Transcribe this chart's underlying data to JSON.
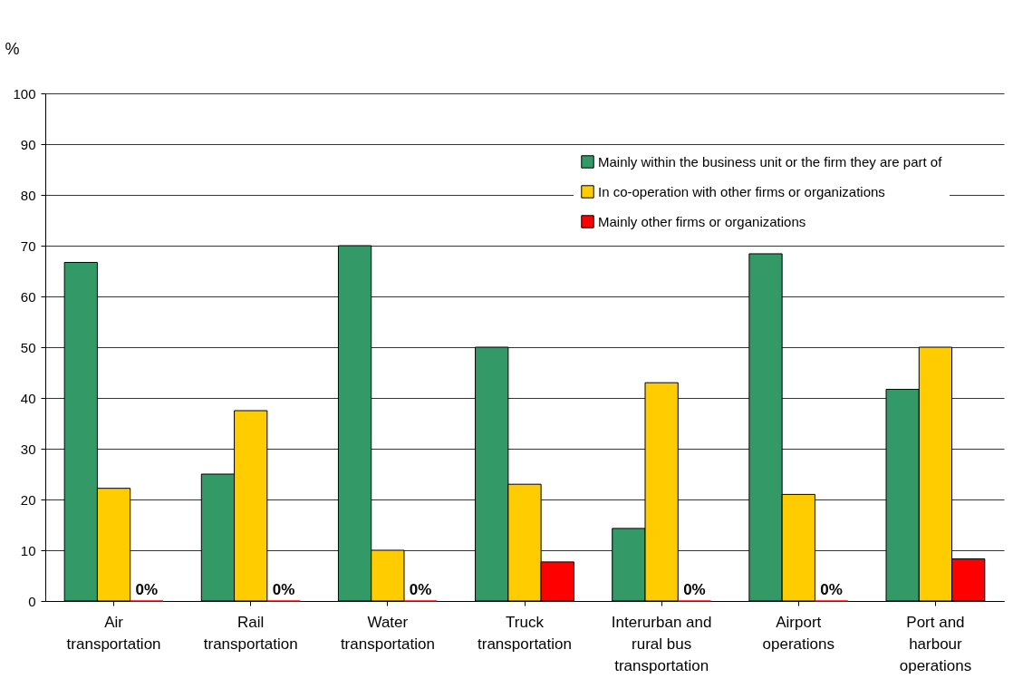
{
  "chart_data": {
    "type": "bar",
    "ylabel": "%",
    "categories": [
      "Air\ntransportation",
      "Rail\ntransportation",
      "Water\ntransportation",
      "Truck\ntransportation",
      "Interurban and\nrural bus\ntransportation",
      "Airport\noperations",
      "Port and\nharbour\noperations"
    ],
    "series": [
      {
        "name": "Mainly within the business unit or the firm they are part of",
        "color": "#339966",
        "values": [
          66.7,
          25,
          70,
          50,
          14.3,
          68.4,
          41.7
        ]
      },
      {
        "name": "In co-operation with other firms or organizations",
        "color": "#ffcc00",
        "values": [
          22.2,
          37.5,
          10,
          23,
          43,
          21,
          50
        ]
      },
      {
        "name": "Mainly other firms or organizations",
        "color": "#ff0000",
        "values": [
          0,
          0,
          0,
          7.7,
          0,
          0,
          8.3
        ],
        "value_labels": [
          "0%",
          "0%",
          "0%",
          null,
          "0%",
          "0%",
          null
        ]
      }
    ],
    "ylim": [
      0,
      100
    ],
    "yticks": [
      0,
      10,
      20,
      30,
      40,
      50,
      60,
      70,
      80,
      90,
      100
    ],
    "grid": "y",
    "legend": "top right"
  }
}
